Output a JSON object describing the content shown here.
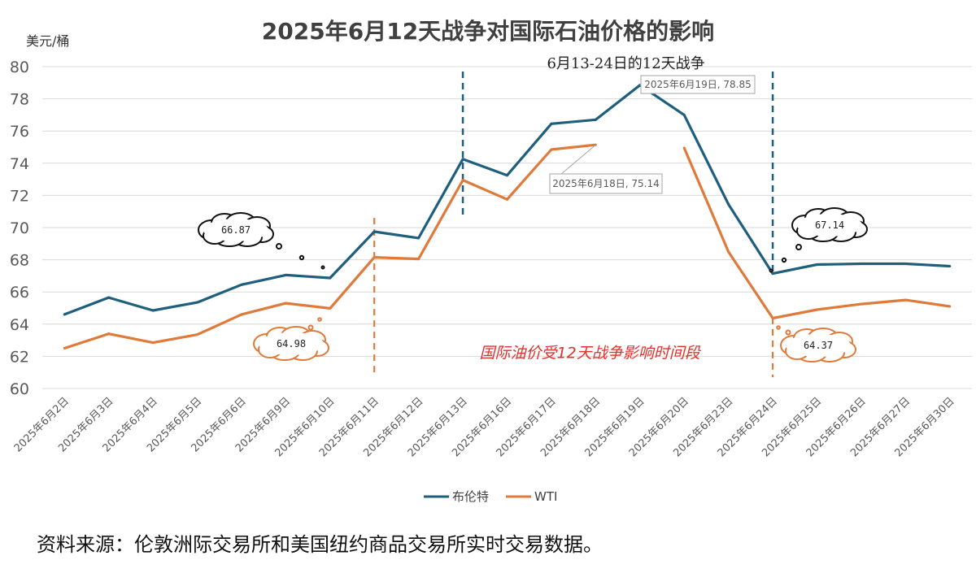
{
  "chart_data": {
    "type": "line",
    "title": "2025年6月12天战争对国际石油价格的影响",
    "ylabel": "美元/桶",
    "ylim": [
      60,
      80
    ],
    "yticks": [
      60,
      62,
      64,
      66,
      68,
      70,
      72,
      74,
      76,
      78,
      80
    ],
    "grid": true,
    "legend_position": "bottom",
    "categories": [
      "2025年6月2日",
      "2025年6月3日",
      "2025年6月4日",
      "2025年6月5日",
      "2025年6月6日",
      "2025年6月9日",
      "2025年6月10日",
      "2025年6月11日",
      "2025年6月12日",
      "2025年6月13日",
      "2025年6月16日",
      "2025年6月17日",
      "2025年6月18日",
      "2025年6月19日",
      "2025年6月20日",
      "2025年6月23日",
      "2025年6月24日",
      "2025年6月25日",
      "2025年6月26日",
      "2025年6月27日",
      "2025年6月30日"
    ],
    "series": [
      {
        "name": "布伦特",
        "color": "#1f5f7e",
        "values": [
          64.6,
          65.65,
          64.85,
          65.35,
          66.45,
          67.05,
          66.87,
          69.75,
          69.35,
          74.25,
          73.25,
          76.45,
          76.7,
          78.85,
          77.0,
          71.45,
          67.14,
          67.7,
          67.75,
          67.75,
          67.6
        ]
      },
      {
        "name": "WTI",
        "color": "#e07a3a",
        "values": [
          62.5,
          63.4,
          62.85,
          63.35,
          64.6,
          65.3,
          64.98,
          68.15,
          68.05,
          72.95,
          71.75,
          74.85,
          75.14,
          null,
          74.95,
          68.5,
          64.37,
          64.9,
          65.25,
          65.5,
          65.1
        ]
      }
    ],
    "annotations": {
      "war_label": "6月13-24日的12天战争",
      "period_label": "国际油价受12天战争影响时间段",
      "callout_brent": "2025年6月19日, 78.85",
      "callout_wti": "2025年6月18日, 75.14",
      "cloud_brent_before": "66.87",
      "cloud_wti_before": "64.98",
      "cloud_brent_after": "67.14",
      "cloud_wti_after": "64.37"
    }
  },
  "footer": {
    "source": "资料来源：伦敦洲际交易所和美国纽约商品交易所实时交易数据。"
  }
}
